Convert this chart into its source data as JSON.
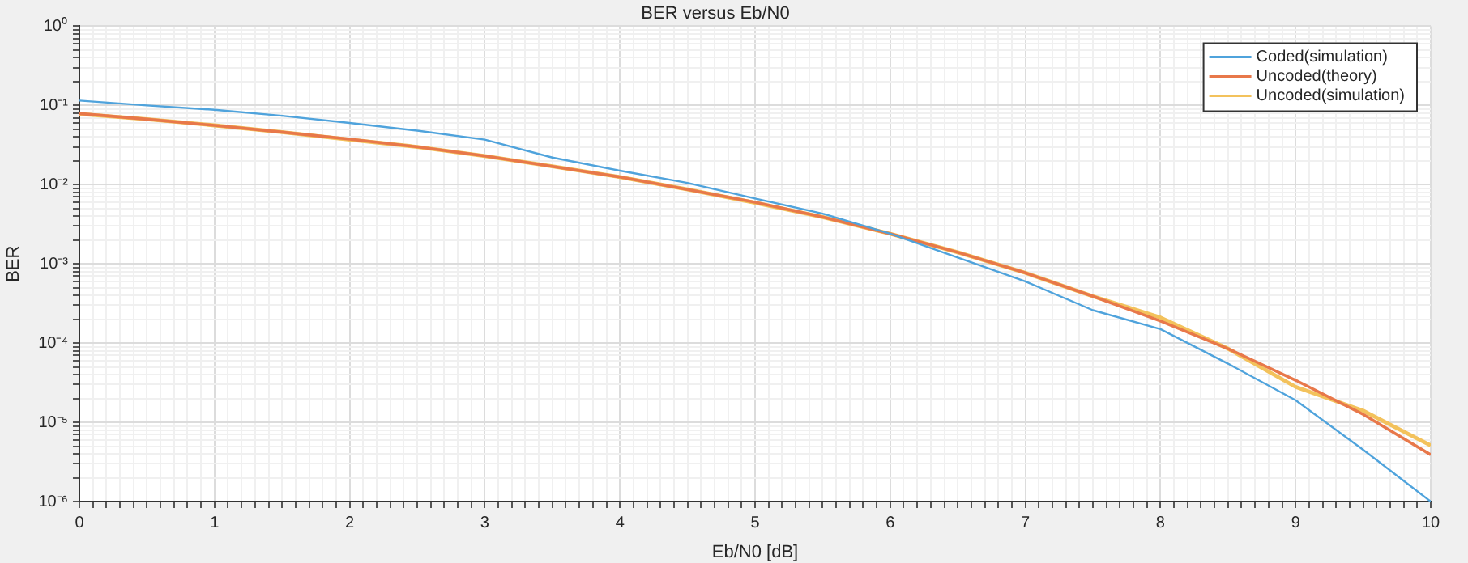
{
  "chart_data": {
    "type": "line",
    "title": "BER versus Eb/N0",
    "xlabel": "Eb/N0 [dB]",
    "ylabel": "BER",
    "x": [
      0,
      0.5,
      1,
      1.5,
      2,
      2.5,
      3,
      3.5,
      4,
      4.5,
      5,
      5.5,
      6,
      6.5,
      7,
      7.5,
      8,
      8.5,
      9,
      9.5,
      10
    ],
    "series": [
      {
        "name": "Coded(simulation)",
        "color": "#4fa3dc",
        "values": [
          0.115,
          0.1,
          0.088,
          0.074,
          0.06,
          0.048,
          0.037,
          0.022,
          0.015,
          0.0105,
          0.0067,
          0.0043,
          0.0024,
          0.0012,
          0.0006,
          0.00026,
          0.00015,
          5.5e-05,
          1.9e-05,
          4.5e-06,
          1e-06
        ]
      },
      {
        "name": "Uncoded(theory)",
        "color": "#e8784a",
        "values": [
          0.079,
          0.067,
          0.056,
          0.046,
          0.0375,
          0.03,
          0.023,
          0.017,
          0.0125,
          0.0087,
          0.006,
          0.0039,
          0.0024,
          0.0014,
          0.00077,
          0.00039,
          0.00019,
          8.5e-05,
          3.4e-05,
          1.26e-05,
          3.9e-06
        ]
      },
      {
        "name": "Uncoded(simulation)",
        "color": "#f3c25c",
        "values": [
          0.078,
          0.067,
          0.056,
          0.046,
          0.037,
          0.03,
          0.023,
          0.017,
          0.0125,
          0.0087,
          0.0059,
          0.0039,
          0.0024,
          0.0014,
          0.00077,
          0.00039,
          0.00021,
          8.5e-05,
          2.8e-05,
          1.4e-05,
          5.1e-06
        ]
      }
    ],
    "log": "y",
    "xlim": [
      0,
      10
    ],
    "ylim": [
      1e-06,
      1
    ],
    "xticks": [
      0,
      {
        "value": 0.1,
        "label": null
      },
      {
        "value": 0.2,
        "label": null
      },
      {
        "value": 0.3,
        "label": null
      },
      {
        "value": 0.4,
        "label": null
      },
      {
        "value": 0.5,
        "label": null
      },
      {
        "value": 0.6,
        "label": null
      },
      {
        "value": 0.7,
        "label": null
      },
      {
        "value": 0.8,
        "label": null
      },
      {
        "value": 0.9,
        "label": null
      },
      1,
      {
        "value": 1.1,
        "label": null
      },
      {
        "value": 1.2,
        "label": null
      },
      {
        "value": 1.3,
        "label": null
      },
      {
        "value": 1.4,
        "label": null
      },
      {
        "value": 1.5,
        "label": null
      },
      {
        "value": 1.6,
        "label": null
      },
      {
        "value": 1.7,
        "label": null
      },
      {
        "value": 1.8,
        "label": null
      },
      {
        "value": 1.9,
        "label": null
      },
      2,
      {
        "value": 2.1,
        "label": null
      },
      {
        "value": 2.2,
        "label": null
      },
      {
        "value": 2.3,
        "label": null
      },
      {
        "value": 2.4,
        "label": null
      },
      {
        "value": 2.5,
        "label": null
      },
      {
        "value": 2.6,
        "label": null
      },
      {
        "value": 2.7,
        "label": null
      },
      {
        "value": 2.8,
        "label": null
      },
      {
        "value": 2.9,
        "label": null
      },
      3,
      {
        "value": 3.1,
        "label": null
      },
      {
        "value": 3.2,
        "label": null
      },
      {
        "value": 3.3,
        "label": null
      },
      {
        "value": 3.4,
        "label": null
      },
      {
        "value": 3.5,
        "label": null
      },
      {
        "value": 3.6,
        "label": null
      },
      {
        "value": 3.7,
        "label": null
      },
      {
        "value": 3.8,
        "label": null
      },
      {
        "value": 3.9,
        "label": null
      },
      4,
      {
        "value": 4.1,
        "label": null
      },
      {
        "value": 4.2,
        "label": null
      },
      {
        "value": 4.3,
        "label": null
      },
      {
        "value": 4.4,
        "label": null
      },
      {
        "value": 4.5,
        "label": null
      },
      {
        "value": 4.6,
        "label": null
      },
      {
        "value": 4.7,
        "label": null
      },
      {
        "value": 4.8,
        "label": null
      },
      {
        "value": 4.9,
        "label": null
      },
      5,
      {
        "value": 5.1,
        "label": null
      },
      {
        "value": 5.2,
        "label": null
      },
      {
        "value": 5.3,
        "label": null
      },
      {
        "value": 5.4,
        "label": null
      },
      {
        "value": 5.5,
        "label": null
      },
      {
        "value": 5.6,
        "label": null
      },
      {
        "value": 5.7,
        "label": null
      },
      {
        "value": 5.8,
        "label": null
      },
      {
        "value": 5.9,
        "label": null
      },
      6,
      {
        "value": 6.1,
        "label": null
      },
      {
        "value": 6.2,
        "label": null
      },
      {
        "value": 6.3,
        "label": null
      },
      {
        "value": 6.4,
        "label": null
      },
      {
        "value": 6.5,
        "label": null
      },
      {
        "value": 6.6,
        "label": null
      },
      {
        "value": 6.7,
        "label": null
      },
      {
        "value": 6.8,
        "label": null
      },
      {
        "value": 6.9,
        "label": null
      },
      7,
      {
        "value": 7.1,
        "label": null
      },
      {
        "value": 7.2,
        "label": null
      },
      {
        "value": 7.3,
        "label": null
      },
      {
        "value": 7.4,
        "label": null
      },
      {
        "value": 7.5,
        "label": null
      },
      {
        "value": 7.6,
        "label": null
      },
      {
        "value": 7.7,
        "label": null
      },
      {
        "value": 7.8,
        "label": null
      },
      {
        "value": 7.9,
        "label": null
      },
      8,
      {
        "value": 8.1,
        "label": null
      },
      {
        "value": 8.2,
        "label": null
      },
      {
        "value": 8.3,
        "label": null
      },
      {
        "value": 8.4,
        "label": null
      },
      {
        "value": 8.5,
        "label": null
      },
      {
        "value": 8.6,
        "label": null
      },
      {
        "value": 8.7,
        "label": null
      },
      {
        "value": 8.8,
        "label": null
      },
      {
        "value": 8.9,
        "label": null
      },
      9,
      {
        "value": 9.1,
        "label": null
      },
      {
        "value": 9.2,
        "label": null
      },
      {
        "value": 9.3,
        "label": null
      },
      {
        "value": 9.4,
        "label": null
      },
      {
        "value": 9.5,
        "label": null
      },
      {
        "value": 9.6,
        "label": null
      },
      {
        "value": 9.7,
        "label": null
      },
      {
        "value": 9.8,
        "label": null
      },
      {
        "value": 9.9,
        "label": null
      },
      10
    ],
    "yticks": [
      {
        "value": 1e-06,
        "label": "10⁻⁶"
      },
      {
        "value": 2e-06,
        "label": null
      },
      {
        "value": 3e-06,
        "label": null
      },
      {
        "value": 4e-06,
        "label": null
      },
      {
        "value": 5e-06,
        "label": null
      },
      {
        "value": 6e-06,
        "label": null
      },
      {
        "value": 7e-06,
        "label": null
      },
      {
        "value": 8e-06,
        "label": null
      },
      {
        "value": 9e-06,
        "label": null
      },
      {
        "value": 1e-05,
        "label": "10⁻⁵"
      },
      {
        "value": 2e-05,
        "label": null
      },
      {
        "value": 3e-05,
        "label": null
      },
      {
        "value": 4e-05,
        "label": null
      },
      {
        "value": 5e-05,
        "label": null
      },
      {
        "value": 6e-05,
        "label": null
      },
      {
        "value": 7e-05,
        "label": null
      },
      {
        "value": 8e-05,
        "label": null
      },
      {
        "value": 9e-05,
        "label": null
      },
      {
        "value": 0.0001,
        "label": "10⁻⁴"
      },
      {
        "value": 0.0002,
        "label": null
      },
      {
        "value": 0.0003,
        "label": null
      },
      {
        "value": 0.0004,
        "label": null
      },
      {
        "value": 0.0005,
        "label": null
      },
      {
        "value": 0.0006,
        "label": null
      },
      {
        "value": 0.0007,
        "label": null
      },
      {
        "value": 0.0008,
        "label": null
      },
      {
        "value": 0.0009,
        "label": null
      },
      {
        "value": 0.001,
        "label": "10⁻³"
      },
      {
        "value": 0.002,
        "label": null
      },
      {
        "value": 0.003,
        "label": null
      },
      {
        "value": 0.004,
        "label": null
      },
      {
        "value": 0.005,
        "label": null
      },
      {
        "value": 0.006,
        "label": null
      },
      {
        "value": 0.007,
        "label": null
      },
      {
        "value": 0.008,
        "label": null
      },
      {
        "value": 0.009,
        "label": null
      },
      {
        "value": 0.01,
        "label": "10⁻²"
      },
      {
        "value": 0.02,
        "label": null
      },
      {
        "value": 0.03,
        "label": null
      },
      {
        "value": 0.04,
        "label": null
      },
      {
        "value": 0.05,
        "label": null
      },
      {
        "value": 0.06,
        "label": null
      },
      {
        "value": 0.07,
        "label": null
      },
      {
        "value": 0.08,
        "label": null
      },
      {
        "value": 0.09,
        "label": null
      },
      {
        "value": 0.1,
        "label": "10⁻¹"
      },
      {
        "value": 0.2,
        "label": null
      },
      {
        "value": 0.3,
        "label": null
      },
      {
        "value": 0.4,
        "label": null
      },
      {
        "value": 0.5,
        "label": null
      },
      {
        "value": 0.6,
        "label": null
      },
      {
        "value": 0.7,
        "label": null
      },
      {
        "value": 0.8,
        "label": null
      },
      {
        "value": 0.9,
        "label": null
      },
      {
        "value": 1,
        "label": "10⁰"
      }
    ],
    "grid": true,
    "legend": "top right",
    "marker": "none",
    "line_style": "solid"
  }
}
